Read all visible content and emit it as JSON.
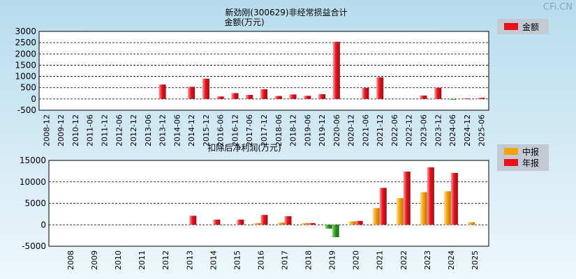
{
  "watermark": "CFi.CN",
  "colors": {
    "bg_top": "#b7dcee",
    "bg_bottom": "#eef7fb",
    "plot_bg": "#ffffff",
    "red": "#e8121c",
    "orange": "#f5a20c",
    "green": "#2e9b1f",
    "legend_bg": "#c4cad3"
  },
  "chart_data": [
    {
      "type": "bar",
      "title": "新劲刚(300629)非经常损益合计",
      "ylabel": "金额(万元)",
      "ylim": [
        -500,
        3000
      ],
      "yticks": [
        3000,
        2500,
        2000,
        1500,
        1000,
        500,
        0,
        -500
      ],
      "grid": true,
      "legend": [
        "金额"
      ],
      "categories": [
        "2008-12",
        "2009-12",
        "2010-12",
        "2011-06",
        "2011-12",
        "2012-06",
        "2012-12",
        "2013-06",
        "2013-12",
        "2014-06",
        "2014-12",
        "2015-12",
        "2016-06",
        "2016-12",
        "2017-06",
        "2017-12",
        "2018-06",
        "2018-12",
        "2019-06",
        "2019-12",
        "2020-06",
        "2020-12",
        "2021-06",
        "2021-12",
        "2022-06",
        "2022-12",
        "2023-06",
        "2023-12",
        "2024-06",
        "2024-12",
        "2025-06"
      ],
      "values": [
        null,
        null,
        null,
        null,
        null,
        null,
        null,
        null,
        640,
        null,
        540,
        900,
        110,
        260,
        180,
        430,
        130,
        200,
        140,
        210,
        2540,
        null,
        490,
        960,
        null,
        null,
        150,
        500,
        -30,
        20,
        50
      ]
    },
    {
      "type": "bar",
      "title": "扣除后净利润(万元)",
      "ylim": [
        -5000,
        15000
      ],
      "yticks": [
        15000,
        10000,
        5000,
        0,
        -5000
      ],
      "grid": true,
      "legend": [
        "中报",
        "年报"
      ],
      "categories": [
        "2008",
        "2009",
        "2010",
        "2011",
        "2012",
        "2013",
        "2014",
        "2015",
        "2016",
        "2017",
        "2018",
        "2019",
        "2020",
        "2021",
        "2022",
        "2023",
        "2024",
        "2025"
      ],
      "series": [
        {
          "name": "中报",
          "values": [
            null,
            null,
            null,
            null,
            null,
            null,
            null,
            null,
            400,
            500,
            400,
            -900,
            800,
            3900,
            6200,
            7600,
            7800,
            600
          ]
        },
        {
          "name": "年报",
          "values": [
            null,
            null,
            null,
            null,
            null,
            2100,
            1200,
            1200,
            2300,
            2000,
            400,
            -2900,
            900,
            8600,
            12400,
            13400,
            12100,
            null
          ]
        }
      ]
    }
  ]
}
